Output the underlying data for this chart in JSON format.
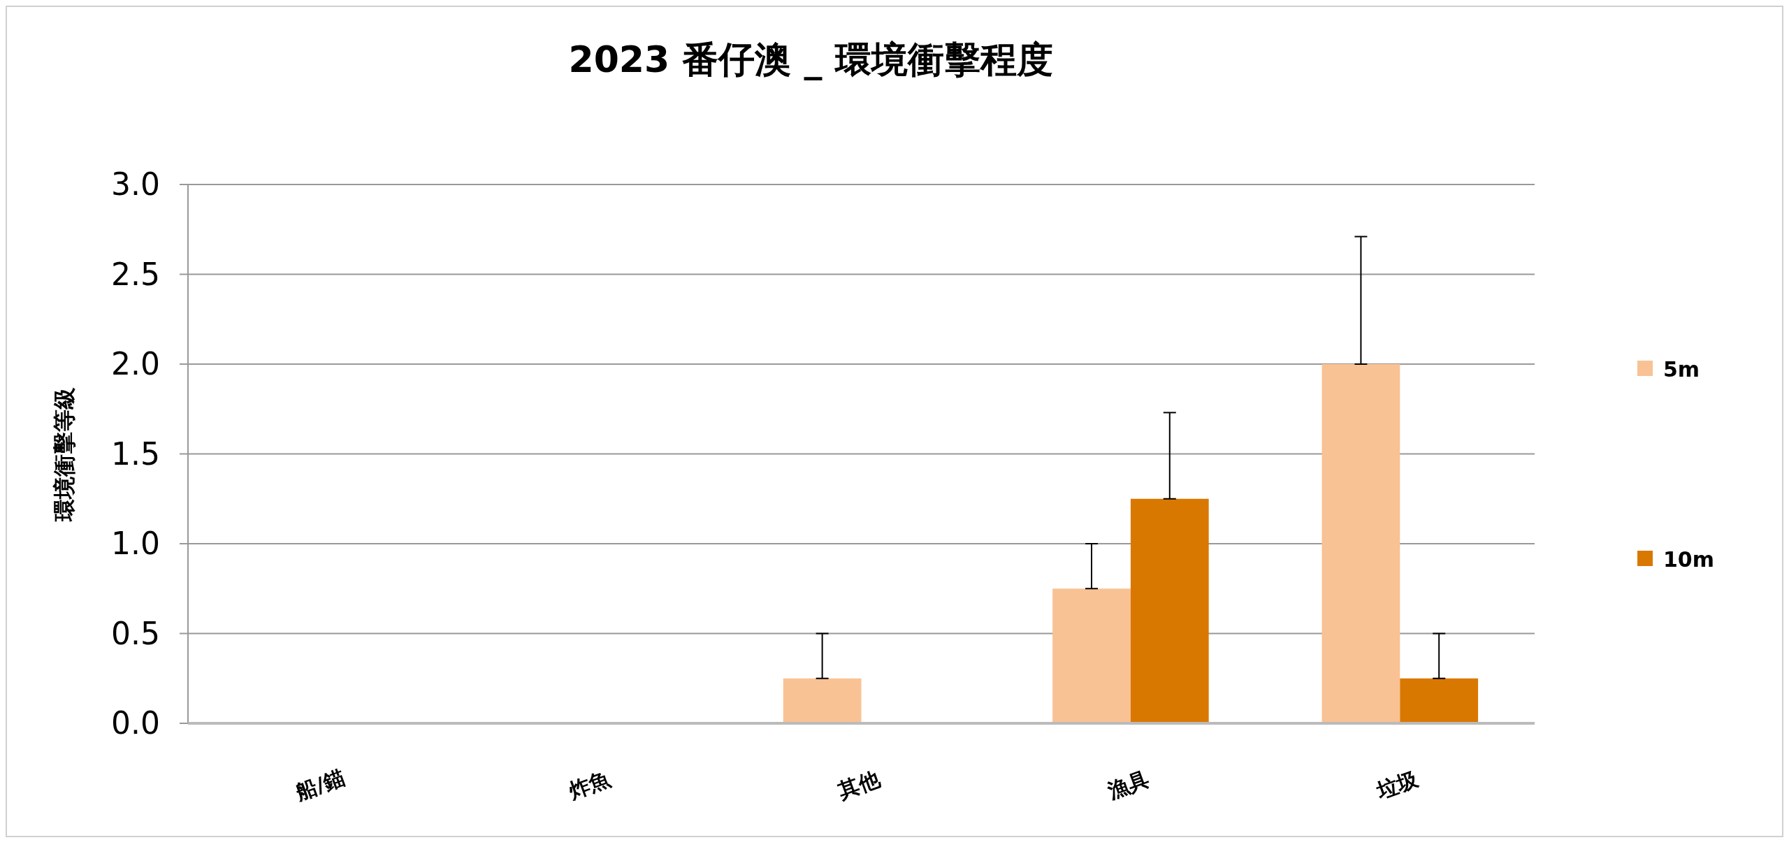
{
  "chart_data": {
    "type": "bar",
    "title": "2023 番仔澳 _ 環境衝擊程度",
    "ylabel": "環境衝擊等級",
    "categories": [
      "船/錨",
      "炸魚",
      "其他",
      "漁具",
      "垃圾"
    ],
    "series": [
      {
        "name": "5m",
        "color": "#f9c294",
        "values": [
          0,
          0,
          0.25,
          0.75,
          2.0
        ],
        "errors": [
          null,
          null,
          [
            0.25,
            0.5
          ],
          [
            0.75,
            1.0
          ],
          [
            2.0,
            2.71
          ]
        ]
      },
      {
        "name": "10m",
        "color": "#d97800",
        "values": [
          0,
          0,
          0,
          1.25,
          0.25
        ],
        "errors": [
          null,
          null,
          null,
          [
            1.25,
            1.73
          ],
          [
            0.25,
            0.5
          ]
        ]
      }
    ],
    "ylim": [
      0,
      3
    ],
    "yticks": [
      {
        "value": 0,
        "label": "0.0"
      },
      {
        "value": 0.5,
        "label": "0.5"
      },
      {
        "value": 1,
        "label": "1.0"
      },
      {
        "value": 1.5,
        "label": "1.5"
      },
      {
        "value": 2,
        "label": "2.0"
      },
      {
        "value": 2.5,
        "label": "2.5"
      },
      {
        "value": 3,
        "label": "3.0"
      }
    ],
    "grid": "y",
    "legend": "right"
  }
}
